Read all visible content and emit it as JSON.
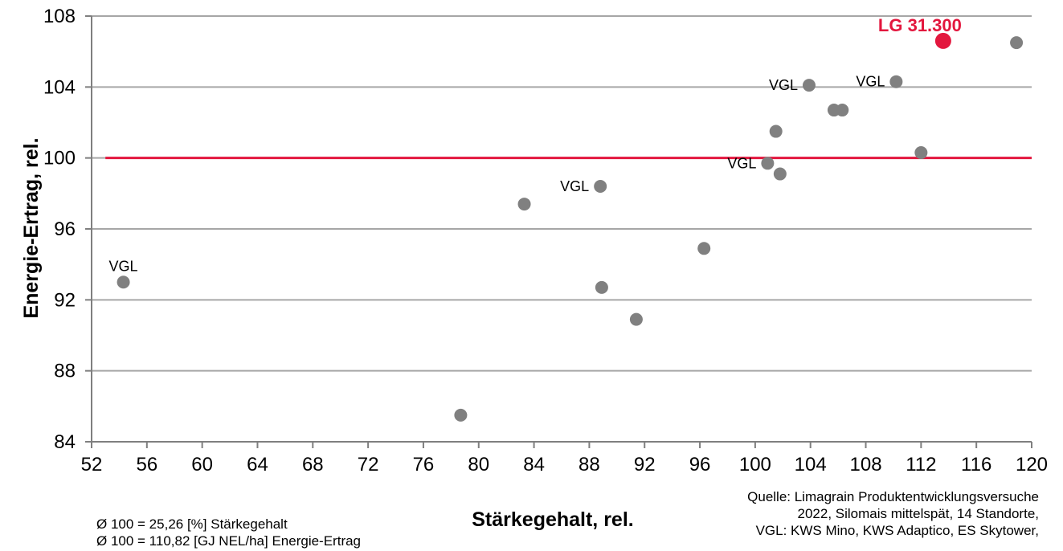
{
  "chart_data": {
    "type": "scatter",
    "xlabel": "Stärkegehalt, rel.",
    "ylabel": "Energie-Ertrag, rel.",
    "xlim": [
      52,
      120
    ],
    "ylim": [
      84,
      108
    ],
    "xticks": [
      "52",
      "56",
      "60",
      "64",
      "68",
      "72",
      "76",
      "80",
      "84",
      "88",
      "92",
      "96",
      "100",
      "104",
      "108",
      "112",
      "116",
      "120"
    ],
    "yticks": [
      "84",
      "88",
      "92",
      "96",
      "100",
      "104",
      "108"
    ],
    "grid": "horizontal",
    "reference_line": {
      "y": 100,
      "color": "#e3173e"
    },
    "colors": {
      "points": "#808080",
      "highlight": "#e3173e",
      "grid": "#a6a6a6",
      "axis": "#7f7f7f"
    },
    "points": [
      {
        "x": 54.3,
        "y": 93.0,
        "label": "VGL"
      },
      {
        "x": 78.7,
        "y": 85.5,
        "label": ""
      },
      {
        "x": 83.3,
        "y": 97.4,
        "label": ""
      },
      {
        "x": 88.8,
        "y": 98.4,
        "label": "VGL"
      },
      {
        "x": 88.9,
        "y": 92.7,
        "label": ""
      },
      {
        "x": 91.4,
        "y": 90.9,
        "label": ""
      },
      {
        "x": 96.3,
        "y": 94.9,
        "label": ""
      },
      {
        "x": 100.9,
        "y": 99.7,
        "label": "VGL"
      },
      {
        "x": 101.5,
        "y": 101.5,
        "label": ""
      },
      {
        "x": 101.8,
        "y": 99.1,
        "label": ""
      },
      {
        "x": 103.9,
        "y": 104.1,
        "label": "VGL"
      },
      {
        "x": 105.7,
        "y": 102.7,
        "label": ""
      },
      {
        "x": 106.3,
        "y": 102.7,
        "label": ""
      },
      {
        "x": 110.2,
        "y": 104.3,
        "label": "VGL"
      },
      {
        "x": 112.0,
        "y": 100.3,
        "label": ""
      },
      {
        "x": 118.9,
        "y": 106.5,
        "label": ""
      }
    ],
    "highlight": {
      "x": 113.6,
      "y": 106.6,
      "label": "LG 31.300"
    }
  },
  "notes": {
    "line1": "Ø 100 = 25,26 [%] Stärkegehalt",
    "line2": "Ø 100 = 110,82 [GJ NEL/ha] Energie-Ertrag"
  },
  "source": {
    "line1": "Quelle: Limagrain Produktentwicklungsversuche",
    "line2": "2022, Silomais mittelspät, 14 Standorte,",
    "line3": "VGL: KWS Mino, KWS Adaptico, ES Skytower,"
  }
}
